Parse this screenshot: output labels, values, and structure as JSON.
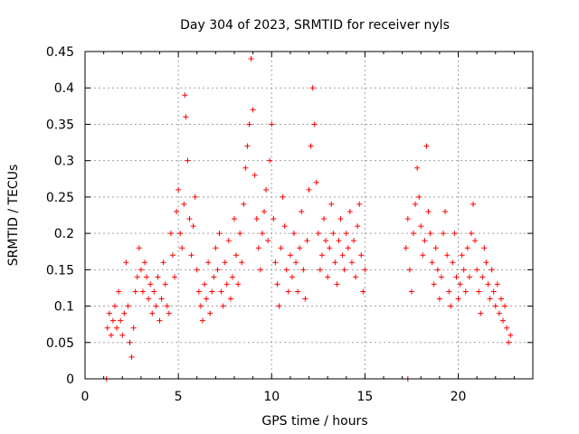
{
  "chart_data": {
    "type": "scatter",
    "title": "Day 304 of 2023, SRMTID for receiver nyls",
    "xlabel": "GPS time / hours",
    "ylabel": "SRMTID / TECUs",
    "xlim": [
      0,
      24
    ],
    "ylim": [
      0,
      0.45
    ],
    "xticks": [
      0,
      5,
      10,
      15,
      20
    ],
    "xtick_labels": [
      "0",
      "5",
      "10",
      "15",
      "20"
    ],
    "yticks": [
      0,
      0.05,
      0.1,
      0.15,
      0.2,
      0.25,
      0.3,
      0.35,
      0.4,
      0.45
    ],
    "ytick_labels": [
      "0",
      "0.05",
      "0.1",
      "0.15",
      "0.2",
      "0.25",
      "0.3",
      "0.35",
      "0.4",
      "0.45"
    ],
    "grid": true,
    "marker": "+",
    "color": "#ff0000",
    "series": [
      {
        "name": "SRMTID",
        "points": [
          [
            1.15,
            0.0
          ],
          [
            17.3,
            0.0
          ],
          [
            1.2,
            0.07
          ],
          [
            1.3,
            0.09
          ],
          [
            1.4,
            0.06
          ],
          [
            1.5,
            0.08
          ],
          [
            1.6,
            0.1
          ],
          [
            1.7,
            0.07
          ],
          [
            1.8,
            0.12
          ],
          [
            1.9,
            0.08
          ],
          [
            2.0,
            0.06
          ],
          [
            2.1,
            0.09
          ],
          [
            2.2,
            0.16
          ],
          [
            2.3,
            0.1
          ],
          [
            2.4,
            0.05
          ],
          [
            2.5,
            0.03
          ],
          [
            2.6,
            0.07
          ],
          [
            2.7,
            0.12
          ],
          [
            2.8,
            0.14
          ],
          [
            2.9,
            0.18
          ],
          [
            3.0,
            0.15
          ],
          [
            3.1,
            0.12
          ],
          [
            3.2,
            0.16
          ],
          [
            3.3,
            0.14
          ],
          [
            3.4,
            0.11
          ],
          [
            3.5,
            0.13
          ],
          [
            3.6,
            0.09
          ],
          [
            3.7,
            0.12
          ],
          [
            3.8,
            0.1
          ],
          [
            3.9,
            0.14
          ],
          [
            4.0,
            0.08
          ],
          [
            4.1,
            0.11
          ],
          [
            4.2,
            0.16
          ],
          [
            4.3,
            0.13
          ],
          [
            4.4,
            0.1
          ],
          [
            4.5,
            0.09
          ],
          [
            4.6,
            0.2
          ],
          [
            4.7,
            0.17
          ],
          [
            4.8,
            0.14
          ],
          [
            4.9,
            0.23
          ],
          [
            5.0,
            0.26
          ],
          [
            5.1,
            0.2
          ],
          [
            5.2,
            0.18
          ],
          [
            5.3,
            0.24
          ],
          [
            5.35,
            0.39
          ],
          [
            5.4,
            0.36
          ],
          [
            5.5,
            0.3
          ],
          [
            5.6,
            0.22
          ],
          [
            5.7,
            0.17
          ],
          [
            5.8,
            0.21
          ],
          [
            5.9,
            0.25
          ],
          [
            6.0,
            0.15
          ],
          [
            6.1,
            0.12
          ],
          [
            6.2,
            0.1
          ],
          [
            6.3,
            0.08
          ],
          [
            6.4,
            0.13
          ],
          [
            6.5,
            0.11
          ],
          [
            6.6,
            0.16
          ],
          [
            6.7,
            0.09
          ],
          [
            6.8,
            0.12
          ],
          [
            6.9,
            0.14
          ],
          [
            7.0,
            0.18
          ],
          [
            7.1,
            0.15
          ],
          [
            7.2,
            0.2
          ],
          [
            7.3,
            0.12
          ],
          [
            7.4,
            0.1
          ],
          [
            7.5,
            0.16
          ],
          [
            7.6,
            0.13
          ],
          [
            7.7,
            0.19
          ],
          [
            7.8,
            0.11
          ],
          [
            7.9,
            0.14
          ],
          [
            8.0,
            0.22
          ],
          [
            8.1,
            0.17
          ],
          [
            8.2,
            0.13
          ],
          [
            8.3,
            0.2
          ],
          [
            8.4,
            0.16
          ],
          [
            8.5,
            0.24
          ],
          [
            8.6,
            0.29
          ],
          [
            8.7,
            0.32
          ],
          [
            8.8,
            0.35
          ],
          [
            8.9,
            0.44
          ],
          [
            9.0,
            0.37
          ],
          [
            9.1,
            0.28
          ],
          [
            9.2,
            0.22
          ],
          [
            9.3,
            0.18
          ],
          [
            9.4,
            0.15
          ],
          [
            9.5,
            0.2
          ],
          [
            9.6,
            0.23
          ],
          [
            9.7,
            0.26
          ],
          [
            9.8,
            0.19
          ],
          [
            9.9,
            0.3
          ],
          [
            10.0,
            0.35
          ],
          [
            10.1,
            0.22
          ],
          [
            10.2,
            0.16
          ],
          [
            10.3,
            0.13
          ],
          [
            10.4,
            0.1
          ],
          [
            10.5,
            0.18
          ],
          [
            10.6,
            0.25
          ],
          [
            10.7,
            0.21
          ],
          [
            10.8,
            0.15
          ],
          [
            10.9,
            0.12
          ],
          [
            11.0,
            0.17
          ],
          [
            11.1,
            0.14
          ],
          [
            11.2,
            0.2
          ],
          [
            11.3,
            0.16
          ],
          [
            11.4,
            0.12
          ],
          [
            11.5,
            0.18
          ],
          [
            11.6,
            0.23
          ],
          [
            11.7,
            0.15
          ],
          [
            11.8,
            0.11
          ],
          [
            11.9,
            0.19
          ],
          [
            12.0,
            0.26
          ],
          [
            12.1,
            0.32
          ],
          [
            12.2,
            0.4
          ],
          [
            12.3,
            0.35
          ],
          [
            12.4,
            0.27
          ],
          [
            12.5,
            0.2
          ],
          [
            12.6,
            0.15
          ],
          [
            12.7,
            0.17
          ],
          [
            12.8,
            0.22
          ],
          [
            12.9,
            0.19
          ],
          [
            13.0,
            0.14
          ],
          [
            13.1,
            0.18
          ],
          [
            13.2,
            0.24
          ],
          [
            13.3,
            0.2
          ],
          [
            13.4,
            0.16
          ],
          [
            13.5,
            0.13
          ],
          [
            13.6,
            0.19
          ],
          [
            13.7,
            0.22
          ],
          [
            13.8,
            0.17
          ],
          [
            13.9,
            0.15
          ],
          [
            14.0,
            0.2
          ],
          [
            14.1,
            0.18
          ],
          [
            14.2,
            0.23
          ],
          [
            14.3,
            0.16
          ],
          [
            14.4,
            0.19
          ],
          [
            14.5,
            0.14
          ],
          [
            14.6,
            0.21
          ],
          [
            14.7,
            0.24
          ],
          [
            14.8,
            0.17
          ],
          [
            14.9,
            0.12
          ],
          [
            15.0,
            0.15
          ],
          [
            17.2,
            0.18
          ],
          [
            17.3,
            0.22
          ],
          [
            17.4,
            0.15
          ],
          [
            17.5,
            0.12
          ],
          [
            17.6,
            0.2
          ],
          [
            17.7,
            0.24
          ],
          [
            17.8,
            0.29
          ],
          [
            17.9,
            0.25
          ],
          [
            18.0,
            0.21
          ],
          [
            18.1,
            0.17
          ],
          [
            18.2,
            0.19
          ],
          [
            18.3,
            0.32
          ],
          [
            18.4,
            0.23
          ],
          [
            18.5,
            0.2
          ],
          [
            18.6,
            0.16
          ],
          [
            18.7,
            0.13
          ],
          [
            18.8,
            0.18
          ],
          [
            18.9,
            0.15
          ],
          [
            19.0,
            0.11
          ],
          [
            19.1,
            0.14
          ],
          [
            19.2,
            0.2
          ],
          [
            19.3,
            0.23
          ],
          [
            19.4,
            0.17
          ],
          [
            19.5,
            0.12
          ],
          [
            19.6,
            0.1
          ],
          [
            19.7,
            0.16
          ],
          [
            19.8,
            0.2
          ],
          [
            19.9,
            0.14
          ],
          [
            20.0,
            0.11
          ],
          [
            20.1,
            0.13
          ],
          [
            20.2,
            0.17
          ],
          [
            20.3,
            0.15
          ],
          [
            20.4,
            0.12
          ],
          [
            20.5,
            0.18
          ],
          [
            20.6,
            0.14
          ],
          [
            20.7,
            0.2
          ],
          [
            20.8,
            0.24
          ],
          [
            20.9,
            0.19
          ],
          [
            21.0,
            0.15
          ],
          [
            21.1,
            0.12
          ],
          [
            21.2,
            0.09
          ],
          [
            21.3,
            0.14
          ],
          [
            21.4,
            0.18
          ],
          [
            21.5,
            0.16
          ],
          [
            21.6,
            0.13
          ],
          [
            21.7,
            0.11
          ],
          [
            21.8,
            0.15
          ],
          [
            21.9,
            0.12
          ],
          [
            22.0,
            0.1
          ],
          [
            22.1,
            0.13
          ],
          [
            22.2,
            0.09
          ],
          [
            22.3,
            0.11
          ],
          [
            22.4,
            0.08
          ],
          [
            22.5,
            0.1
          ],
          [
            22.6,
            0.07
          ],
          [
            22.7,
            0.05
          ],
          [
            22.8,
            0.06
          ]
        ]
      }
    ]
  }
}
